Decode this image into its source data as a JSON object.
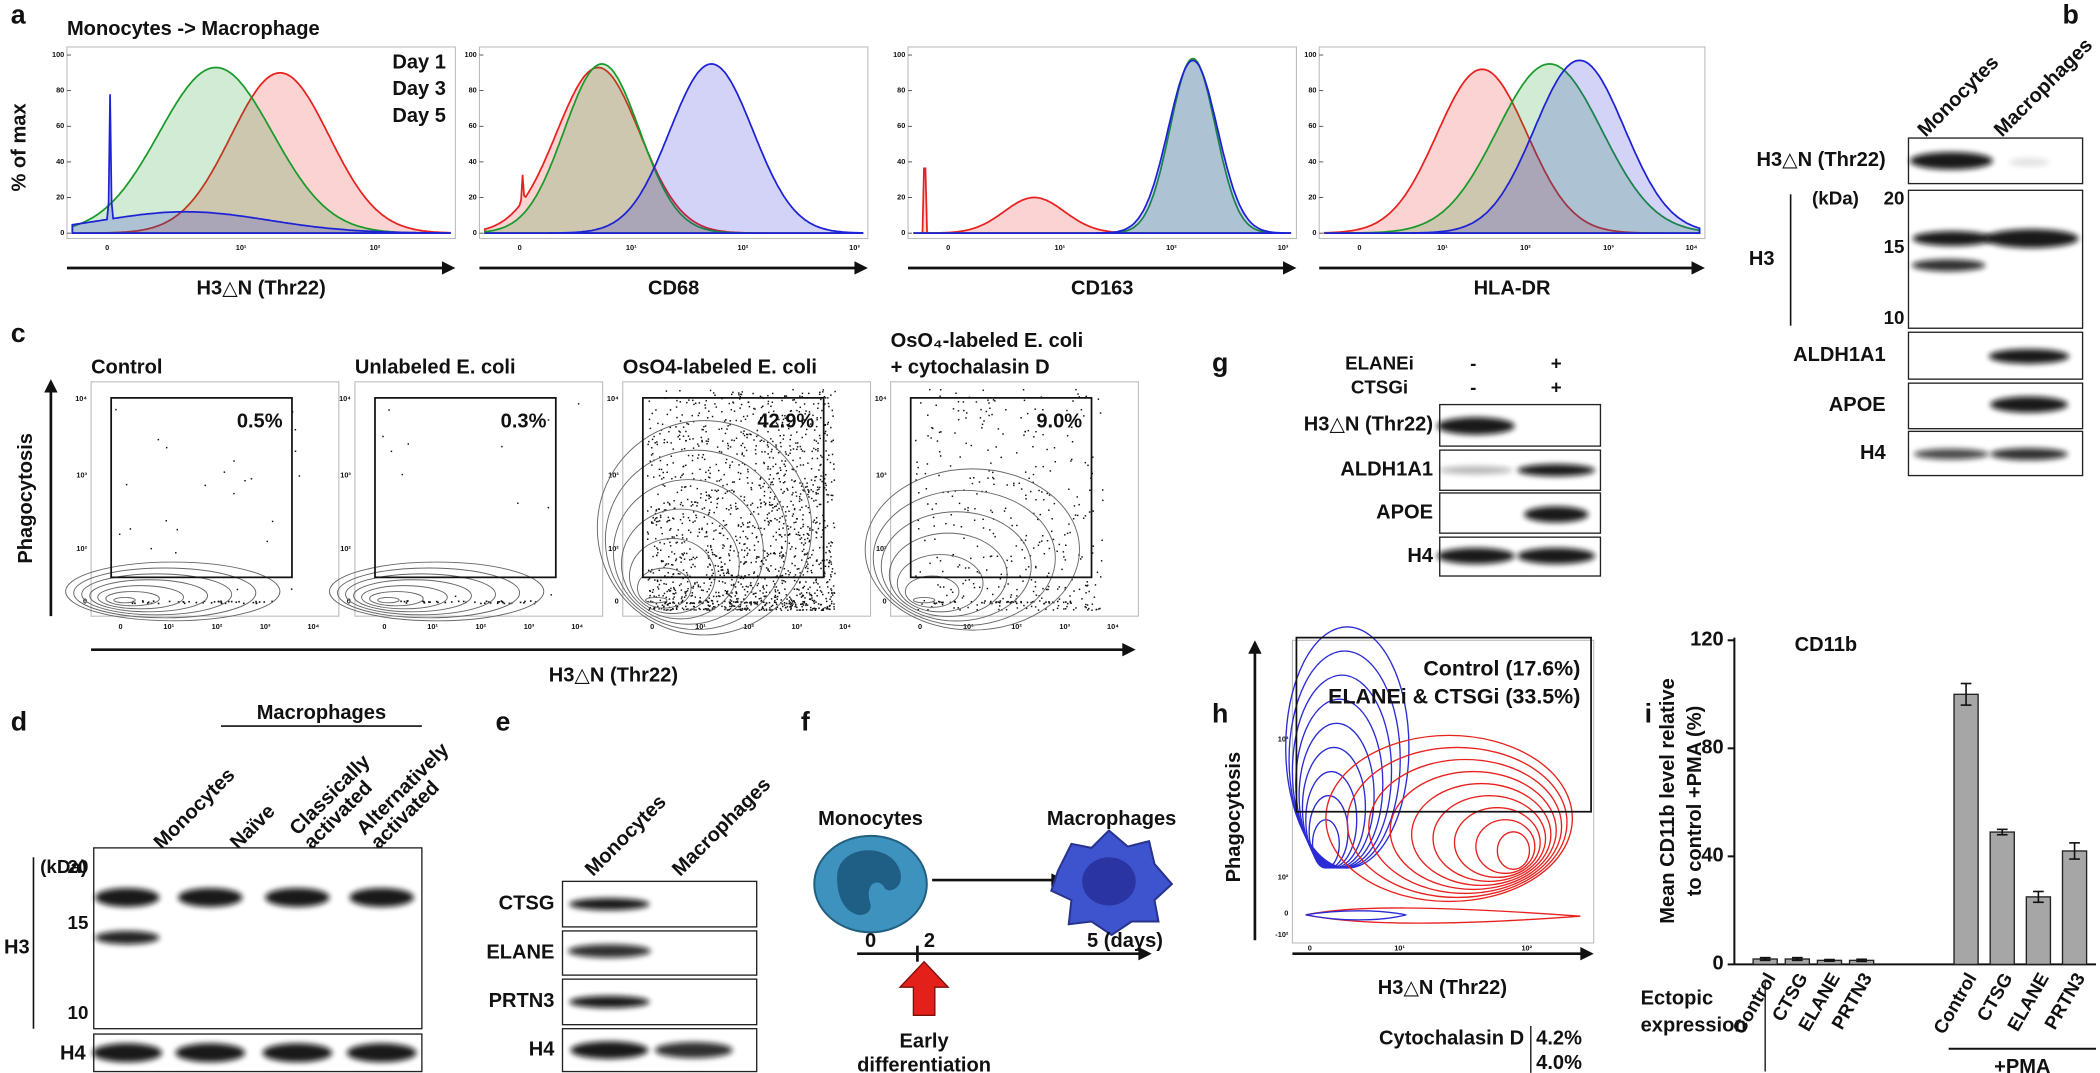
{
  "panels": {
    "a": {
      "label": "a",
      "title": "Monocytes -> Macrophage",
      "y_label": "% of max",
      "legend": [
        {
          "name": "Day 1",
          "color": "#e8211e"
        },
        {
          "name": "Day 3",
          "color": "#1a9a2a"
        },
        {
          "name": "Day 5",
          "color": "#1e22d6"
        }
      ],
      "yticks": [
        0,
        20,
        40,
        60,
        80,
        100
      ],
      "plots": [
        {
          "x_label": "H3△N (Thr22)",
          "xticks": [
            "0",
            "10¹",
            "10²"
          ]
        },
        {
          "x_label": "CD68",
          "xticks": [
            "0",
            "10¹",
            "10²",
            "10³"
          ]
        },
        {
          "x_label": "CD163",
          "xticks": [
            "0",
            "10¹",
            "10²",
            "10³"
          ]
        },
        {
          "x_label": "HLA-DR",
          "xticks": [
            "0",
            "10¹",
            "10²",
            "10³",
            "10⁴"
          ]
        }
      ]
    },
    "b": {
      "label": "b",
      "columns": [
        [
          "Monocytes"
        ],
        [
          "Macrophages"
        ]
      ],
      "kda_unit": "(kDa)",
      "kda_marks": [
        20,
        15,
        10
      ],
      "h3_label": "H3",
      "rows": [
        "H3△N (Thr22)",
        "ALDH1A1",
        "APOE",
        "H4"
      ]
    },
    "c": {
      "label": "c",
      "y_label": "Phagocytosis",
      "x_label": "H3△N (Thr22)",
      "yticks": [
        "0",
        "10²",
        "10³",
        "10⁴"
      ],
      "xticks": [
        "0",
        "10¹",
        "10²",
        "10³",
        "10⁴"
      ],
      "plots": [
        {
          "title": [
            "Control"
          ],
          "gate": "0.5%"
        },
        {
          "title": [
            "Unlabeled E. coli"
          ],
          "gate": "0.3%"
        },
        {
          "title": [
            "OsO4-labeled E. coli"
          ],
          "gate": "42.9%"
        },
        {
          "title": [
            "OsO₄-labeled E. coli",
            "+ cytochalasin D"
          ],
          "gate": "9.0%"
        }
      ]
    },
    "d": {
      "label": "d",
      "group": "Macrophages",
      "columns": [
        [
          "Monocytes"
        ],
        [
          "Naïve"
        ],
        [
          "Classically",
          "activated"
        ],
        [
          "Alternatively",
          "activated"
        ]
      ],
      "kda_unit": "(kDa)",
      "kda_marks": [
        20,
        15,
        10
      ],
      "rows": [
        "H3",
        "H4"
      ]
    },
    "e": {
      "label": "e",
      "columns": [
        [
          "Monocytes"
        ],
        [
          "Macrophages"
        ]
      ],
      "rows": [
        "CTSG",
        "ELANE",
        "PRTN3",
        "H4"
      ]
    },
    "f": {
      "label": "f",
      "start": "Monocytes",
      "end": "Macrophages",
      "timeline": [
        "0",
        "2",
        "5 (days)"
      ],
      "event": [
        "Early",
        "differentiation"
      ]
    },
    "g": {
      "label": "g",
      "treatments": [
        {
          "name": "ELANEi",
          "marks": [
            "-",
            "+"
          ]
        },
        {
          "name": "CTSGi",
          "marks": [
            "-",
            "+"
          ]
        }
      ],
      "rows": [
        "H3△N (Thr22)",
        "ALDH1A1",
        "APOE",
        "H4"
      ]
    },
    "h": {
      "label": "h",
      "y_label": "Phagocytosis",
      "x_label": "H3△N (Thr22)",
      "yticks": [
        "-10²",
        "0",
        "10²",
        "10³"
      ],
      "xticks": [
        "0",
        "10¹",
        "10²"
      ],
      "legend": [
        {
          "name": "Control (17.6%)",
          "color": "#e8211e"
        },
        {
          "name": "ELANEi & CTSGi (33.5%)",
          "color": "#2b2bd6"
        }
      ],
      "cytochalasin": {
        "label": "Cytochalasin D",
        "values": [
          "4.2%",
          "4.0%"
        ]
      }
    }
  },
  "chart_data": {
    "type": "bar",
    "label": "i",
    "title": "CD11b",
    "y_label": [
      "Mean CD11b level relative",
      "to control +PMA (%)"
    ],
    "categories": [
      "Control",
      "CTSG",
      "ELANE",
      "PRTN3",
      "Control",
      "CTSG",
      "ELANE",
      "PRTN3"
    ],
    "values": [
      2,
      2,
      1.5,
      1.5,
      100,
      49,
      25,
      42
    ],
    "errors": [
      0.5,
      0.5,
      0.3,
      0.4,
      4,
      1,
      2,
      3
    ],
    "color": "#a6a6a6",
    "ylim": [
      0,
      120
    ],
    "yticks": [
      0,
      40,
      80,
      120
    ],
    "x_title": [
      "Ectopic",
      "expression"
    ],
    "group_label": "+PMA"
  }
}
